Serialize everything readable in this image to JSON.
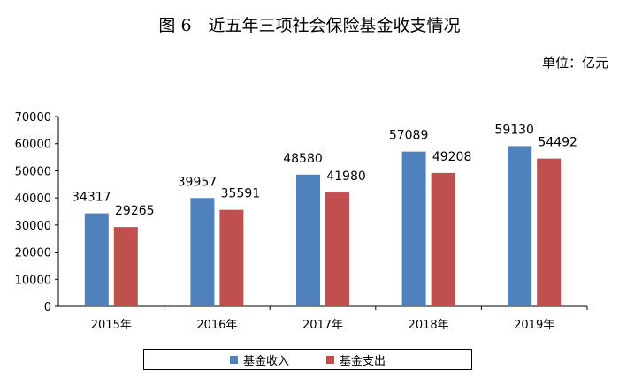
{
  "chart_data": {
    "type": "bar",
    "title": "图 6　近五年三项社会保险基金收支情况",
    "unit_label": "单位：亿元",
    "categories": [
      "2015年",
      "2016年",
      "2017年",
      "2018年",
      "2019年"
    ],
    "series": [
      {
        "name": "基金收入",
        "values": [
          34317,
          39957,
          48580,
          57089,
          59130
        ],
        "color": "#4f81bd"
      },
      {
        "name": "基金支出",
        "values": [
          29265,
          35591,
          41980,
          49208,
          54492
        ],
        "color": "#c0504d"
      }
    ],
    "ylim": [
      0,
      70000
    ],
    "yticks": [
      0,
      10000,
      20000,
      30000,
      40000,
      50000,
      60000,
      70000
    ],
    "grid": false,
    "legend_position": "bottom"
  }
}
